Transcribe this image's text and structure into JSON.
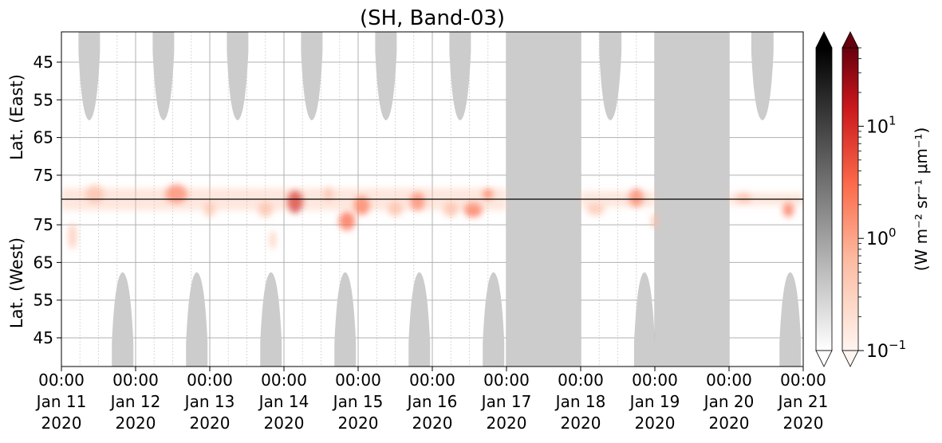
{
  "chart_data": {
    "type": "heatmap",
    "title": "(SH, Band-03)",
    "ylabel_top": "Lat. (East)",
    "ylabel_bottom": "Lat. (West)",
    "y_ticks_top": [
      "45",
      "55",
      "65",
      "75"
    ],
    "y_ticks_bottom": [
      "75",
      "65",
      "55",
      "45"
    ],
    "x_ticks": [
      {
        "day": 0,
        "line1": "00:00",
        "line2": "Jan 11",
        "line3": "2020"
      },
      {
        "day": 1,
        "line1": "00:00",
        "line2": "Jan 12",
        "line3": "2020"
      },
      {
        "day": 2,
        "line1": "00:00",
        "line2": "Jan 13",
        "line3": "2020"
      },
      {
        "day": 3,
        "line1": "00:00",
        "line2": "Jan 14",
        "line3": "2020"
      },
      {
        "day": 4,
        "line1": "00:00",
        "line2": "Jan 15",
        "line3": "2020"
      },
      {
        "day": 5,
        "line1": "00:00",
        "line2": "Jan 16",
        "line3": "2020"
      },
      {
        "day": 6,
        "line1": "00:00",
        "line2": "Jan 17",
        "line3": "2020"
      },
      {
        "day": 7,
        "line1": "00:00",
        "line2": "Jan 18",
        "line3": "2020"
      },
      {
        "day": 8,
        "line1": "00:00",
        "line2": "Jan 19",
        "line3": "2020"
      },
      {
        "day": 9,
        "line1": "00:00",
        "line2": "Jan 20",
        "line3": "2020"
      },
      {
        "day": 10,
        "line1": "00:00",
        "line2": "Jan 21",
        "line3": "2020"
      }
    ],
    "colorbar": {
      "label": "(W m⁻² sr⁻¹ μm⁻¹)",
      "scale": "log",
      "range": [
        0.1,
        50
      ],
      "ticks": [
        {
          "value": 10,
          "base": "10",
          "exp": "1"
        },
        {
          "value": 1,
          "base": "10",
          "exp": "0"
        },
        {
          "value": 0.1,
          "base": "10",
          "exp": "−1"
        }
      ],
      "cmap_gray": [
        "#ffffff",
        "#000000"
      ],
      "cmap_reds": [
        "#fff5f0",
        "#fcbba1",
        "#fb6a4a",
        "#cb181d",
        "#67000d"
      ]
    },
    "no_data_color": "#cccccc",
    "no_data_days": [
      [
        6,
        7
      ],
      [
        8,
        9
      ]
    ],
    "day_caps_east": [
      [
        0.23,
        0.52
      ],
      [
        1.23,
        1.52
      ],
      [
        2.23,
        2.52
      ],
      [
        3.23,
        3.52
      ],
      [
        4.23,
        4.52
      ],
      [
        5.23,
        5.52
      ],
      [
        7.25,
        7.55
      ],
      [
        9.3,
        9.6
      ]
    ],
    "day_caps_west": [
      [
        0.68,
        0.97
      ],
      [
        1.68,
        1.97
      ],
      [
        2.68,
        2.97
      ],
      [
        3.68,
        3.97
      ],
      [
        4.68,
        4.97
      ],
      [
        5.68,
        5.97
      ],
      [
        7.72,
        8.0
      ],
      [
        9.68,
        9.97
      ]
    ],
    "aurora_blobs": [
      {
        "day": 0.45,
        "lat": 80,
        "w": 0.25,
        "h": 5,
        "level": 0.25
      },
      {
        "day": 0.15,
        "lat": 72,
        "w": 0.12,
        "h": 7,
        "level": 0.15
      },
      {
        "day": 1.55,
        "lat": 80,
        "w": 0.3,
        "h": 5,
        "level": 0.4
      },
      {
        "day": 2.0,
        "lat": 79,
        "w": 0.15,
        "h": 4,
        "level": 0.18
      },
      {
        "day": 2.75,
        "lat": 79,
        "w": 0.2,
        "h": 4,
        "level": 0.3
      },
      {
        "day": 2.85,
        "lat": 71,
        "w": 0.08,
        "h": 5,
        "level": 0.15
      },
      {
        "day": 3.15,
        "lat": 82,
        "w": 0.22,
        "h": 6,
        "level": 0.7
      },
      {
        "day": 3.6,
        "lat": 80,
        "w": 0.12,
        "h": 4,
        "level": 0.2
      },
      {
        "day": 3.85,
        "lat": 76,
        "w": 0.22,
        "h": 5,
        "level": 0.5
      },
      {
        "day": 4.05,
        "lat": 83,
        "w": 0.22,
        "h": 5,
        "level": 0.6
      },
      {
        "day": 4.5,
        "lat": 84,
        "w": 0.2,
        "h": 4,
        "level": 0.3
      },
      {
        "day": 4.8,
        "lat": 82,
        "w": 0.2,
        "h": 5,
        "level": 0.45
      },
      {
        "day": 5.25,
        "lat": 79,
        "w": 0.2,
        "h": 4,
        "level": 0.35
      },
      {
        "day": 5.55,
        "lat": 79,
        "w": 0.25,
        "h": 4,
        "level": 0.5
      },
      {
        "day": 5.75,
        "lat": 80,
        "w": 0.15,
        "h": 3,
        "level": 0.5
      },
      {
        "day": 7.2,
        "lat": 79,
        "w": 0.25,
        "h": 3,
        "level": 0.2
      },
      {
        "day": 7.75,
        "lat": 81,
        "w": 0.2,
        "h": 5,
        "level": 0.4
      },
      {
        "day": 8.0,
        "lat": 76,
        "w": 0.1,
        "h": 4,
        "level": 0.3
      },
      {
        "day": 9.2,
        "lat": 81,
        "w": 0.2,
        "h": 3,
        "level": 0.2
      },
      {
        "day": 9.8,
        "lat": 79,
        "w": 0.15,
        "h": 4,
        "level": 0.4
      }
    ]
  }
}
